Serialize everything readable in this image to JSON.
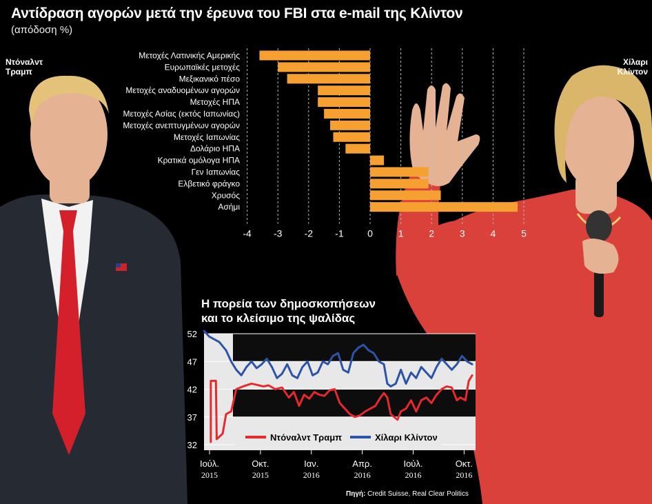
{
  "header": {
    "title": "Αντίδραση αγορών μετά την έρευνα του FBI στα e-mail της Κλίντον",
    "subtitle": "(απόδοση %)"
  },
  "labels": {
    "trump": [
      "Ντόναλντ",
      "Τραμπ"
    ],
    "clinton": [
      "Χίλαρι",
      "Κλίντον"
    ]
  },
  "colors": {
    "background": "#000000",
    "bar": "#f5a031",
    "trump_line": "#e8292c",
    "clinton_line": "#2b54a8",
    "poll_panel": "#e8e8e8",
    "trump_photo_suit": "#262b33",
    "trump_photo_tie": "#d4202a",
    "clinton_photo_jacket": "#d9413a",
    "skin": "#e6b294",
    "hair": "#e4c27a"
  },
  "source": {
    "label": "Πηγή:",
    "text": "Credit Suisse, Real Clear Politics"
  },
  "chart_data": [
    {
      "type": "bar",
      "orientation": "horizontal",
      "title": "Αντίδραση αγορών μετά την έρευνα του FBI στα e-mail της Κλίντον",
      "unit": "απόδοση %",
      "categories": [
        "Μετοχές Λατινικής Αμερικής",
        "Ευρωπαϊκές μετοχές",
        "Μεξικανικό πέσο",
        "Μετοχές αναδυομένων αγορών",
        "Μετοχές ΗΠΑ",
        "Μετοχές Ασίας (εκτός Ιαπωνίας)",
        "Μετοχές ανεπτυγμένων αγορών",
        "Μετοχές Ιαπωνίας",
        "Δολάριο ΗΠΑ",
        "Κρατικά ομόλογα ΗΠΑ",
        "Γεν Ιαπωνίας",
        "Ελβετικό φράγκο",
        "Χρυσός",
        "Ασήμι"
      ],
      "values": [
        -3.6,
        -3.0,
        -2.7,
        -1.7,
        -1.7,
        -1.5,
        -1.3,
        -1.2,
        -0.8,
        0.45,
        1.9,
        1.9,
        2.3,
        4.8
      ],
      "xlim": [
        -4.2,
        5.2
      ],
      "xticks": [
        -4,
        -3,
        -2,
        -1,
        0,
        1,
        2,
        3,
        4,
        5
      ],
      "xtick_labels": [
        "-4",
        "-3",
        "-2",
        "-1",
        "0",
        "1",
        "2",
        "3",
        "4",
        "5"
      ],
      "grid": "vertical dashed"
    },
    {
      "type": "line",
      "title": "Η πορεία των δημοσκοπήσεων και το κλείσιμο της ψαλίδας",
      "title_lines": [
        "Η πορεία των δημοσκοπήσεων",
        "και το κλείσιμο της ψαλίδας"
      ],
      "x_range": [
        0,
        16
      ],
      "x_unit": "months since Jul 2015",
      "xticks": [
        0,
        3,
        6,
        9,
        12,
        15
      ],
      "xtick_labels": [
        [
          "Ιούλ.",
          "2015"
        ],
        [
          "Οκτ.",
          "2015"
        ],
        [
          "Ιαν.",
          "2016"
        ],
        [
          "Απρ.",
          "2016"
        ],
        [
          "Ιούλ.",
          "2016"
        ],
        [
          "Οκτ.",
          "2016"
        ]
      ],
      "ylim": [
        32,
        52
      ],
      "yticks": [
        52,
        47,
        42,
        37,
        32
      ],
      "ytick_labels": [
        "52",
        "47",
        "42",
        "37",
        "32"
      ],
      "legend_position": "lower",
      "series": [
        {
          "name": "Ντόναλντ Τραμπ",
          "color": "#e8292c",
          "x": [
            0.4,
            0.4,
            0.7,
            0.75,
            1.1,
            1.3,
            1.6,
            1.9,
            2.3,
            2.8,
            3.1,
            3.5,
            3.8,
            4.2,
            4.6,
            5.0,
            5.3,
            5.6,
            5.9,
            6.2,
            6.5,
            6.8,
            7.1,
            7.4,
            7.7,
            8.0,
            8.3,
            8.6,
            8.9,
            9.2,
            9.5,
            9.8,
            10.1,
            10.4,
            10.6,
            10.8,
            11.0,
            11.2,
            11.4,
            11.6,
            11.9,
            12.2,
            12.5,
            12.8,
            13.1,
            13.4,
            13.7,
            14.0,
            14.3,
            14.6,
            14.9,
            15.1,
            15.4,
            15.6,
            15.8
          ],
          "values": [
            32.5,
            43.5,
            43.5,
            33.0,
            34.0,
            37.5,
            38.0,
            42.0,
            42.5,
            43.0,
            42.8,
            42.5,
            42.7,
            42.0,
            42.3,
            40.5,
            41.5,
            39.0,
            41.0,
            40.3,
            41.5,
            41.0,
            40.8,
            41.8,
            42.0,
            39.5,
            38.5,
            37.5,
            37.0,
            37.3,
            38.0,
            38.5,
            39.0,
            40.5,
            41.3,
            40.5,
            37.5,
            37.0,
            36.5,
            38.0,
            38.5,
            40.0,
            38.0,
            40.0,
            40.5,
            39.5,
            41.0,
            42.0,
            42.5,
            42.3,
            40.0,
            40.5,
            40.0,
            43.5,
            44.5
          ]
        },
        {
          "name": "Χίλαρι Κλίντον",
          "color": "#2b54a8",
          "x": [
            0.0,
            0.3,
            0.6,
            0.9,
            1.3,
            1.6,
            1.9,
            2.2,
            2.5,
            2.8,
            3.1,
            3.4,
            3.7,
            4.0,
            4.3,
            4.6,
            4.9,
            5.2,
            5.5,
            5.8,
            6.1,
            6.4,
            6.7,
            7.0,
            7.3,
            7.6,
            7.9,
            8.2,
            8.5,
            8.8,
            9.1,
            9.4,
            9.7,
            10.0,
            10.3,
            10.6,
            10.8,
            11.0,
            11.3,
            11.6,
            11.9,
            12.2,
            12.5,
            12.8,
            13.1,
            13.4,
            13.7,
            14.0,
            14.3,
            14.6,
            14.9,
            15.2,
            15.5,
            15.8
          ],
          "values": [
            52.5,
            51.5,
            51.0,
            50.5,
            49.0,
            47.0,
            45.5,
            44.5,
            46.0,
            47.0,
            45.8,
            46.5,
            47.5,
            46.0,
            44.0,
            44.8,
            46.5,
            44.5,
            44.0,
            46.0,
            47.0,
            44.5,
            45.0,
            47.0,
            46.5,
            48.0,
            48.5,
            45.5,
            45.0,
            48.5,
            49.5,
            50.0,
            49.0,
            48.5,
            47.0,
            46.5,
            43.0,
            42.5,
            43.0,
            45.5,
            43.0,
            45.0,
            44.0,
            46.0,
            45.0,
            44.0,
            46.0,
            47.5,
            46.5,
            45.5,
            46.5,
            48.0,
            47.0,
            46.5
          ]
        }
      ]
    }
  ]
}
